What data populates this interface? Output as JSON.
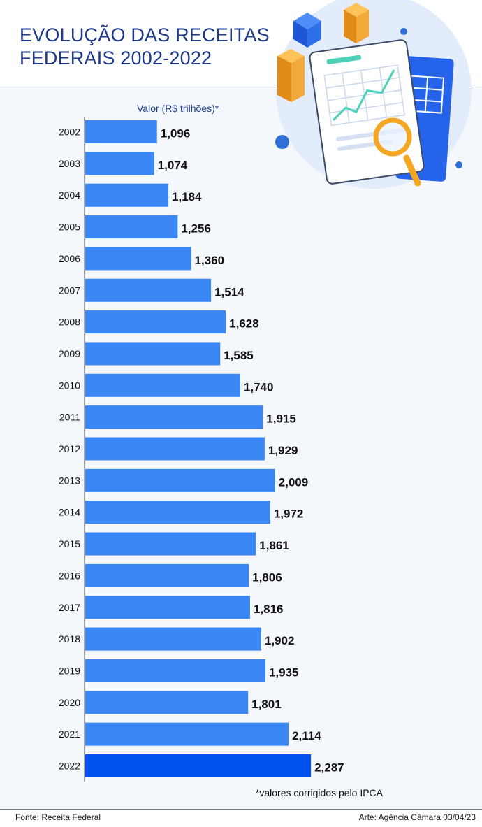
{
  "title": {
    "line1": "EVOLUÇÃO DAS RECEITAS",
    "line2": "FEDERAIS 2002-2022"
  },
  "colors": {
    "title": "#1d3a8a",
    "bar": "#3a86f5",
    "bar_highlight": "#0050f0",
    "axis": "#555555"
  },
  "footer": {
    "source": "Fonte: Receita Federal",
    "credit": "Arte: Agência Câmara 03/04/23"
  },
  "chart_data": {
    "type": "bar",
    "orientation": "horizontal",
    "title": "EVOLUÇÃO DAS RECEITAS FEDERAIS 2002-2022",
    "value_axis_label": "Valor (R$ trilhões)*",
    "note": "*valores corrigidos pelo IPCA",
    "categories": [
      "2002",
      "2003",
      "2004",
      "2005",
      "2006",
      "2007",
      "2008",
      "2009",
      "2010",
      "2011",
      "2012",
      "2013",
      "2014",
      "2015",
      "2016",
      "2017",
      "2018",
      "2019",
      "2020",
      "2021",
      "2022"
    ],
    "values": [
      1.096,
      1.074,
      1.184,
      1.256,
      1.36,
      1.514,
      1.628,
      1.585,
      1.74,
      1.915,
      1.929,
      2.009,
      1.972,
      1.861,
      1.806,
      1.816,
      1.902,
      1.935,
      1.801,
      2.114,
      2.287
    ],
    "value_labels": [
      "1,096",
      "1,074",
      "1,184",
      "1,256",
      "1,360",
      "1,514",
      "1,628",
      "1,585",
      "1,740",
      "1,915",
      "1,929",
      "2,009",
      "1,972",
      "1,861",
      "1,806",
      "1,816",
      "1,902",
      "1,935",
      "1,801",
      "2,114",
      "2,287"
    ],
    "highlight": "2022",
    "grid": false
  }
}
